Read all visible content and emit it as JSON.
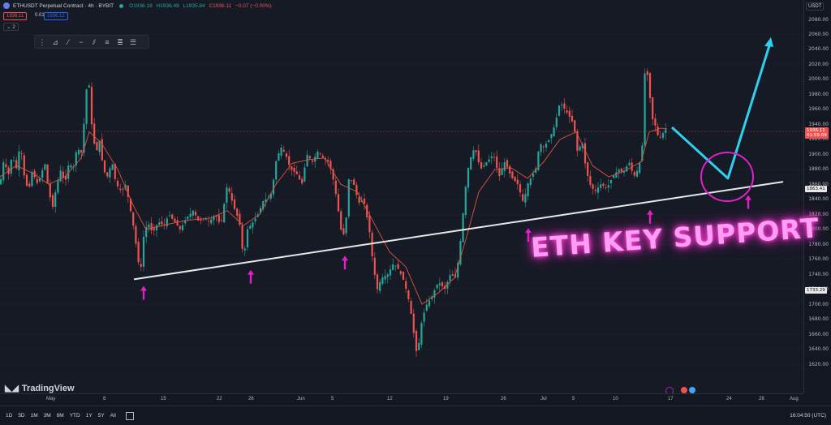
{
  "header": {
    "symbol_title": "ETHUSDT Perpetual Contract · 4h · BYBIT",
    "open": "O1936.18",
    "high": "H1936.49",
    "low": "L1935.84",
    "close": "C1936.11",
    "change": "−0.07 (−0.00%)",
    "bid": "1936.11",
    "spread": "0.01",
    "ask": "1936.12",
    "indicator_count": "2"
  },
  "price_axis": {
    "currency": "USDT",
    "ticks": [
      "2080.00",
      "2060.00",
      "2040.00",
      "2020.00",
      "2000.00",
      "1980.00",
      "1960.00",
      "1940.00",
      "1920.00",
      "1900.00",
      "1880.00",
      "1860.00",
      "1840.00",
      "1820.00",
      "1800.00",
      "1780.00",
      "1760.00",
      "1740.00",
      "1720.00",
      "1700.00",
      "1680.00",
      "1660.00",
      "1640.00",
      "1620.00"
    ],
    "last_price": "1936.11",
    "countdown": "01:55:09",
    "line_label_upper": "1863.41",
    "line_label_lower": "1733.29"
  },
  "time_axis": {
    "labels": [
      "May",
      "8",
      "15",
      "22",
      "26",
      "Jun",
      "5",
      "12",
      "19",
      "26",
      "Jul",
      "5",
      "10",
      "17",
      "24",
      "28",
      "Aug"
    ]
  },
  "bottom_bar": {
    "ranges": [
      "1D",
      "5D",
      "1M",
      "3M",
      "6M",
      "YTD",
      "1Y",
      "5Y",
      "All"
    ],
    "clock": "16:04:50 (UTC)"
  },
  "branding": {
    "logo_text": "TradingView"
  },
  "annotation": {
    "text": "ETH KEY SUPPORT"
  },
  "colors": {
    "up": "#26a69a",
    "down": "#ef5350",
    "ma_line": "#e0533f",
    "support_line": "#e8e8e8",
    "projection": "#2fd0ee",
    "marker": "#e020c8"
  },
  "chart_data": {
    "type": "candlestick",
    "title": "ETHUSDT Perpetual Contract · 4h · BYBIT",
    "ylim": [
      1620,
      2090
    ],
    "y_unit": "USDT",
    "price_path": [
      [
        0,
        1860
      ],
      [
        5,
        1895
      ],
      [
        10,
        1870
      ],
      [
        15,
        1900
      ],
      [
        20,
        1880
      ],
      [
        25,
        1915
      ],
      [
        30,
        1870
      ],
      [
        35,
        1850
      ],
      [
        40,
        1880
      ],
      [
        45,
        1860
      ],
      [
        50,
        1870
      ],
      [
        55,
        1890
      ],
      [
        60,
        1850
      ],
      [
        65,
        1830
      ],
      [
        70,
        1860
      ],
      [
        75,
        1880
      ],
      [
        80,
        1860
      ],
      [
        85,
        1890
      ],
      [
        90,
        1880
      ],
      [
        95,
        1910
      ],
      [
        100,
        1900
      ],
      [
        105,
        1960
      ],
      [
        108,
        2010
      ],
      [
        110,
        1990
      ],
      [
        113,
        1940
      ],
      [
        118,
        1900
      ],
      [
        123,
        1920
      ],
      [
        127,
        1880
      ],
      [
        132,
        1870
      ],
      [
        138,
        1890
      ],
      [
        143,
        1860
      ],
      [
        150,
        1850
      ],
      [
        155,
        1860
      ],
      [
        160,
        1830
      ],
      [
        165,
        1800
      ],
      [
        170,
        1760
      ],
      [
        173,
        1740
      ],
      [
        177,
        1790
      ],
      [
        182,
        1810
      ],
      [
        188,
        1795
      ],
      [
        195,
        1810
      ],
      [
        202,
        1805
      ],
      [
        208,
        1820
      ],
      [
        215,
        1810
      ],
      [
        222,
        1800
      ],
      [
        230,
        1815
      ],
      [
        238,
        1825
      ],
      [
        245,
        1810
      ],
      [
        252,
        1815
      ],
      [
        258,
        1810
      ],
      [
        265,
        1820
      ],
      [
        272,
        1805
      ],
      [
        280,
        1860
      ],
      [
        288,
        1830
      ],
      [
        295,
        1810
      ],
      [
        300,
        1760
      ],
      [
        305,
        1800
      ],
      [
        312,
        1810
      ],
      [
        318,
        1820
      ],
      [
        325,
        1840
      ],
      [
        330,
        1840
      ],
      [
        335,
        1850
      ],
      [
        340,
        1890
      ],
      [
        346,
        1910
      ],
      [
        352,
        1900
      ],
      [
        358,
        1880
      ],
      [
        365,
        1875
      ],
      [
        372,
        1860
      ],
      [
        378,
        1900
      ],
      [
        385,
        1890
      ],
      [
        392,
        1905
      ],
      [
        398,
        1895
      ],
      [
        405,
        1890
      ],
      [
        410,
        1870
      ],
      [
        415,
        1840
      ],
      [
        420,
        1800
      ],
      [
        425,
        1790
      ],
      [
        430,
        1870
      ],
      [
        436,
        1860
      ],
      [
        442,
        1835
      ],
      [
        448,
        1840
      ],
      [
        455,
        1800
      ],
      [
        460,
        1750
      ],
      [
        465,
        1720
      ],
      [
        470,
        1735
      ],
      [
        478,
        1740
      ],
      [
        485,
        1755
      ],
      [
        492,
        1745
      ],
      [
        498,
        1730
      ],
      [
        505,
        1700
      ],
      [
        510,
        1660
      ],
      [
        514,
        1630
      ],
      [
        520,
        1680
      ],
      [
        526,
        1700
      ],
      [
        532,
        1710
      ],
      [
        540,
        1730
      ],
      [
        548,
        1720
      ],
      [
        555,
        1740
      ],
      [
        562,
        1735
      ],
      [
        568,
        1790
      ],
      [
        573,
        1850
      ],
      [
        578,
        1890
      ],
      [
        585,
        1910
      ],
      [
        592,
        1880
      ],
      [
        600,
        1890
      ],
      [
        608,
        1900
      ],
      [
        615,
        1870
      ],
      [
        622,
        1890
      ],
      [
        630,
        1870
      ],
      [
        638,
        1860
      ],
      [
        645,
        1835
      ],
      [
        650,
        1860
      ],
      [
        655,
        1870
      ],
      [
        660,
        1880
      ],
      [
        665,
        1915
      ],
      [
        670,
        1910
      ],
      [
        677,
        1920
      ],
      [
        684,
        1940
      ],
      [
        690,
        1970
      ],
      [
        696,
        1960
      ],
      [
        702,
        1950
      ],
      [
        707,
        1940
      ],
      [
        712,
        1900
      ],
      [
        717,
        1920
      ],
      [
        722,
        1880
      ],
      [
        727,
        1860
      ],
      [
        733,
        1850
      ],
      [
        740,
        1860
      ],
      [
        748,
        1855
      ],
      [
        755,
        1870
      ],
      [
        762,
        1880
      ],
      [
        768,
        1875
      ],
      [
        775,
        1890
      ],
      [
        781,
        1870
      ],
      [
        786,
        1880
      ],
      [
        791,
        1900
      ],
      [
        795,
        2020
      ],
      [
        799,
        2000
      ],
      [
        803,
        1950
      ],
      [
        807,
        1940
      ],
      [
        812,
        1920
      ],
      [
        818,
        1930
      ],
      [
        822,
        1936
      ]
    ],
    "ma_path": [
      [
        0,
        1870
      ],
      [
        20,
        1885
      ],
      [
        40,
        1875
      ],
      [
        60,
        1860
      ],
      [
        80,
        1870
      ],
      [
        100,
        1895
      ],
      [
        110,
        1930
      ],
      [
        125,
        1915
      ],
      [
        145,
        1880
      ],
      [
        165,
        1830
      ],
      [
        180,
        1800
      ],
      [
        200,
        1805
      ],
      [
        230,
        1812
      ],
      [
        260,
        1815
      ],
      [
        280,
        1825
      ],
      [
        300,
        1805
      ],
      [
        320,
        1820
      ],
      [
        340,
        1860
      ],
      [
        360,
        1888
      ],
      [
        380,
        1893
      ],
      [
        400,
        1895
      ],
      [
        420,
        1860
      ],
      [
        440,
        1850
      ],
      [
        460,
        1810
      ],
      [
        480,
        1770
      ],
      [
        500,
        1750
      ],
      [
        520,
        1700
      ],
      [
        540,
        1715
      ],
      [
        560,
        1735
      ],
      [
        575,
        1790
      ],
      [
        590,
        1850
      ],
      [
        610,
        1880
      ],
      [
        630,
        1882
      ],
      [
        650,
        1868
      ],
      [
        670,
        1890
      ],
      [
        690,
        1920
      ],
      [
        710,
        1930
      ],
      [
        730,
        1885
      ],
      [
        750,
        1870
      ],
      [
        770,
        1878
      ],
      [
        790,
        1890
      ],
      [
        800,
        1930
      ],
      [
        815,
        1935
      ],
      [
        822,
        1934
      ]
    ],
    "support_line": {
      "from": [
        165,
        1733.29
      ],
      "to": [
        965,
        1863.41
      ]
    },
    "projection": [
      [
        828,
        1936
      ],
      [
        897,
        1868
      ],
      [
        950,
        2052
      ]
    ],
    "support_touch_markers_x": [
      177,
      309,
      425,
      651,
      801,
      922
    ],
    "target_circle_center": [
      896,
      1870
    ]
  }
}
